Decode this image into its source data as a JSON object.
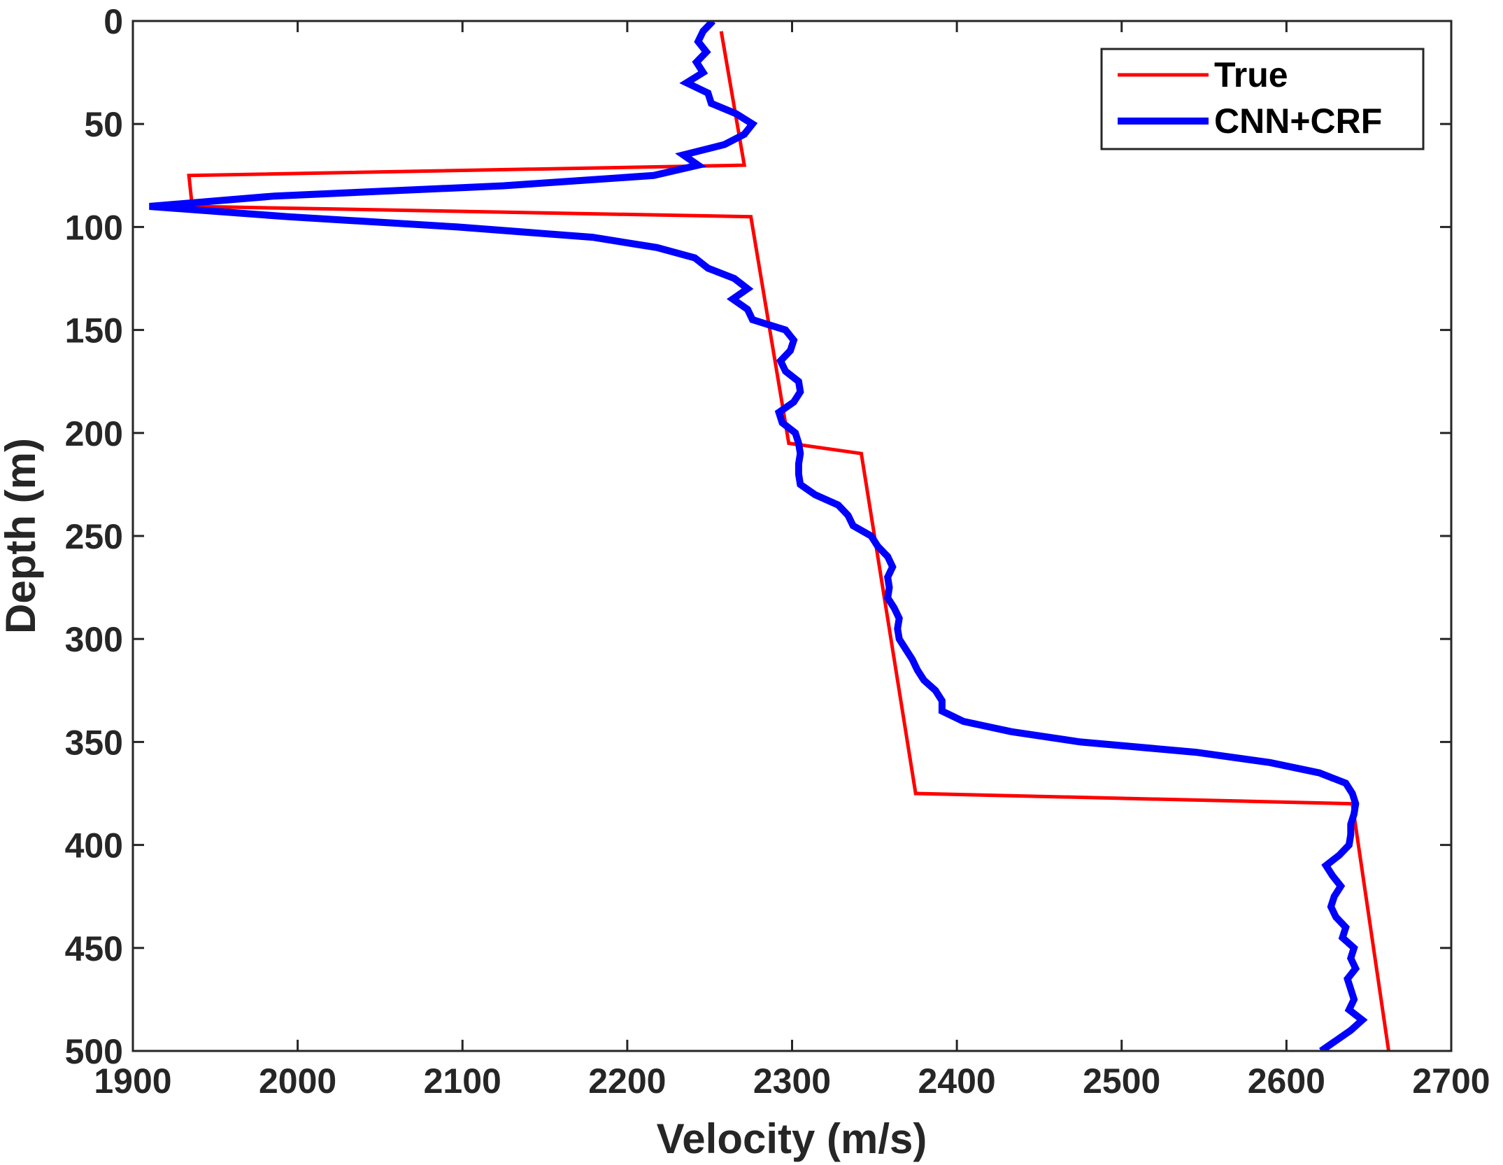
{
  "chart_data": {
    "type": "line",
    "title": "",
    "xlabel": "Velocity (m/s)",
    "ylabel": "Depth (m)",
    "xlim": [
      1900,
      2700
    ],
    "ylim": [
      0,
      500
    ],
    "y_reversed": true,
    "grid": false,
    "legend_position": "top-right",
    "x_ticks": [
      1900,
      2000,
      2100,
      2200,
      2300,
      2400,
      2500,
      2600,
      2700
    ],
    "y_ticks": [
      0,
      50,
      100,
      150,
      200,
      250,
      300,
      350,
      400,
      450,
      500
    ],
    "x_tick_labels": [
      "1900",
      "2000",
      "2100",
      "2200",
      "2300",
      "2400",
      "2500",
      "2600",
      "2700"
    ],
    "y_tick_labels": [
      "0",
      "50",
      "100",
      "150",
      "200",
      "250",
      "300",
      "350",
      "400",
      "450",
      "500"
    ],
    "series": [
      {
        "name": "True",
        "color": "#ff0000",
        "points": [
          [
            2257,
            5
          ],
          [
            2271,
            70
          ],
          [
            1934,
            75
          ],
          [
            1936,
            90
          ],
          [
            2275,
            95
          ],
          [
            2298,
            205
          ],
          [
            2342,
            210
          ],
          [
            2375,
            375
          ],
          [
            2640,
            380
          ],
          [
            2662,
            500
          ]
        ]
      },
      {
        "name": "CNN+CRF",
        "color": "#0000ff",
        "points": [
          [
            2252,
            0
          ],
          [
            2246,
            5
          ],
          [
            2243,
            10
          ],
          [
            2248,
            15
          ],
          [
            2242,
            20
          ],
          [
            2246,
            25
          ],
          [
            2236,
            30
          ],
          [
            2249,
            35
          ],
          [
            2251,
            40
          ],
          [
            2266,
            45
          ],
          [
            2276,
            50
          ],
          [
            2271,
            55
          ],
          [
            2259,
            60
          ],
          [
            2234,
            65
          ],
          [
            2243,
            70
          ],
          [
            2216,
            75
          ],
          [
            2125,
            80
          ],
          [
            1986,
            85
          ],
          [
            1910,
            90
          ],
          [
            1994,
            95
          ],
          [
            2097,
            100
          ],
          [
            2179,
            105
          ],
          [
            2218,
            110
          ],
          [
            2241,
            115
          ],
          [
            2249,
            120
          ],
          [
            2265,
            125
          ],
          [
            2273,
            130
          ],
          [
            2264,
            135
          ],
          [
            2273,
            140
          ],
          [
            2276,
            145
          ],
          [
            2296,
            150
          ],
          [
            2301,
            155
          ],
          [
            2299,
            160
          ],
          [
            2293,
            165
          ],
          [
            2296,
            170
          ],
          [
            2304,
            175
          ],
          [
            2305,
            180
          ],
          [
            2301,
            185
          ],
          [
            2292,
            190
          ],
          [
            2294,
            195
          ],
          [
            2302,
            200
          ],
          [
            2304,
            205
          ],
          [
            2305,
            210
          ],
          [
            2304,
            215
          ],
          [
            2304,
            220
          ],
          [
            2305,
            225
          ],
          [
            2314,
            230
          ],
          [
            2328,
            235
          ],
          [
            2334,
            240
          ],
          [
            2337,
            245
          ],
          [
            2348,
            250
          ],
          [
            2352,
            255
          ],
          [
            2358,
            260
          ],
          [
            2361,
            265
          ],
          [
            2358,
            270
          ],
          [
            2359,
            275
          ],
          [
            2358,
            280
          ],
          [
            2362,
            285
          ],
          [
            2365,
            290
          ],
          [
            2364,
            295
          ],
          [
            2365,
            300
          ],
          [
            2369,
            305
          ],
          [
            2373,
            310
          ],
          [
            2376,
            315
          ],
          [
            2380,
            320
          ],
          [
            2387,
            325
          ],
          [
            2391,
            330
          ],
          [
            2391,
            335
          ],
          [
            2404,
            340
          ],
          [
            2433,
            345
          ],
          [
            2475,
            350
          ],
          [
            2545,
            355
          ],
          [
            2590,
            360
          ],
          [
            2620,
            365
          ],
          [
            2636,
            370
          ],
          [
            2640,
            375
          ],
          [
            2642,
            380
          ],
          [
            2641,
            385
          ],
          [
            2639,
            390
          ],
          [
            2639,
            395
          ],
          [
            2638,
            400
          ],
          [
            2632,
            405
          ],
          [
            2624,
            410
          ],
          [
            2628,
            415
          ],
          [
            2633,
            420
          ],
          [
            2629,
            425
          ],
          [
            2627,
            430
          ],
          [
            2630,
            435
          ],
          [
            2636,
            440
          ],
          [
            2634,
            445
          ],
          [
            2641,
            450
          ],
          [
            2639,
            455
          ],
          [
            2642,
            460
          ],
          [
            2637,
            465
          ],
          [
            2639,
            470
          ],
          [
            2641,
            475
          ],
          [
            2638,
            480
          ],
          [
            2646,
            485
          ],
          [
            2639,
            490
          ],
          [
            2630,
            495
          ],
          [
            2621,
            500
          ]
        ]
      }
    ]
  }
}
